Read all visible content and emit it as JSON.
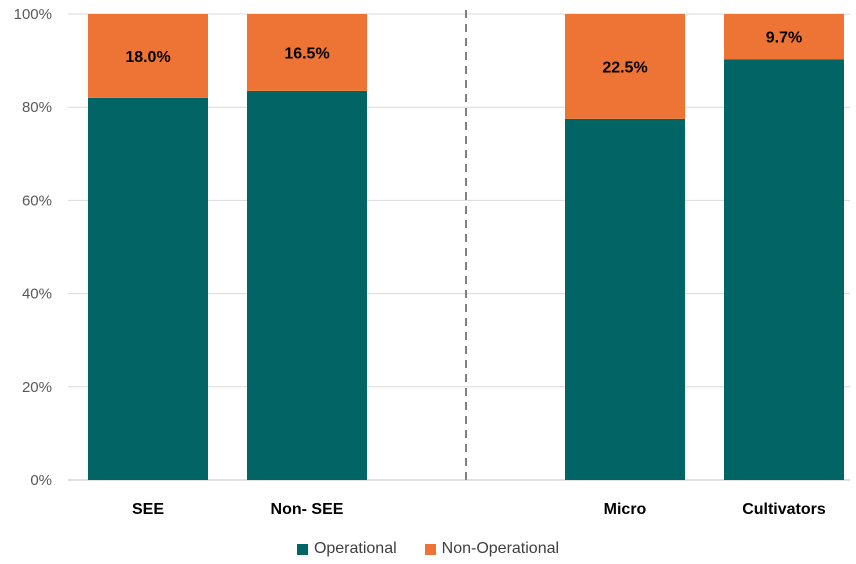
{
  "chart_data": {
    "type": "bar",
    "stacked": true,
    "categories": [
      "SEE",
      "Non- SEE",
      "Micro",
      "Cultivators"
    ],
    "series": [
      {
        "name": "Operational",
        "values": [
          82.0,
          83.5,
          77.5,
          90.3
        ],
        "color": "#016565"
      },
      {
        "name": "Non-Operational",
        "values": [
          18.0,
          16.5,
          22.5,
          9.7
        ],
        "color": "#ED7434"
      }
    ],
    "data_labels": [
      "18.0%",
      "16.5%",
      "22.5%",
      "9.7%"
    ],
    "yticks": [
      "0%",
      "20%",
      "40%",
      "60%",
      "80%",
      "100%"
    ],
    "ylim": [
      0,
      100
    ],
    "grid": true,
    "divider": "dashed line between Non- SEE and Micro",
    "legend_position": "bottom"
  },
  "legend": {
    "operational": "Operational",
    "non_operational": "Non-Operational"
  }
}
